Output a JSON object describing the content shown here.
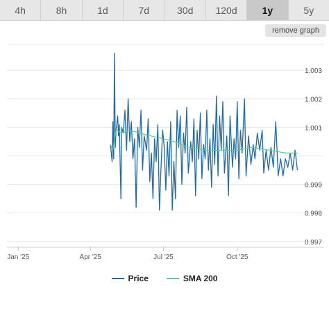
{
  "tabs": [
    {
      "label": "4h",
      "active": false
    },
    {
      "label": "8h",
      "active": false
    },
    {
      "label": "1d",
      "active": false
    },
    {
      "label": "7d",
      "active": false
    },
    {
      "label": "30d",
      "active": false
    },
    {
      "label": "120d",
      "active": false
    },
    {
      "label": "1y",
      "active": true
    },
    {
      "label": "5y",
      "active": false
    }
  ],
  "remove_graph_label": "remove graph",
  "colors": {
    "price": "#1f6aa5",
    "sma": "#4fd18f",
    "grid": "#e6e6e6",
    "tab_active": "#c9c9c9"
  },
  "chart_data": {
    "type": "line",
    "title": "",
    "xlabel": "",
    "ylabel": "",
    "x_range": [
      "2024-12-18",
      "2025-12-18"
    ],
    "ylim": [
      0.9968,
      1.0041
    ],
    "yticks": [
      0.997,
      0.998,
      0.999,
      1.0,
      1.001,
      1.002,
      1.003
    ],
    "ytick_labels": [
      "0.997",
      "0.998",
      "0.999",
      "",
      "1.001",
      "1.002",
      "1.003"
    ],
    "xticks": [
      "2025-01-01",
      "2025-04-01",
      "2025-07-01",
      "2025-10-01"
    ],
    "xtick_labels": [
      "Jan '25",
      "Apr '25",
      "Jul '25",
      "Oct '25"
    ],
    "grid": true,
    "legend": "bottom",
    "series": [
      {
        "name": "Price",
        "color": "#1f6aa5",
        "points": [
          [
            "2025-04-26",
            1.0004
          ],
          [
            "2025-04-27",
            1.0001
          ],
          [
            "2025-04-28",
            0.9998
          ],
          [
            "2025-04-29",
            1.0012
          ],
          [
            "2025-04-30",
            0.9999
          ],
          [
            "2025-05-01",
            1.0036
          ],
          [
            "2025-05-02",
            1.0003
          ],
          [
            "2025-05-03",
            1.0009
          ],
          [
            "2025-05-05",
            1.0014
          ],
          [
            "2025-05-06",
            1.0007
          ],
          [
            "2025-05-07",
            1.0011
          ],
          [
            "2025-05-09",
            0.9985
          ],
          [
            "2025-05-10",
            1.001
          ],
          [
            "2025-05-12",
            1.0008
          ],
          [
            "2025-05-14",
            1.0016
          ],
          [
            "2025-05-16",
            1.0002
          ],
          [
            "2025-05-18",
            1.002
          ],
          [
            "2025-05-20",
            1.0005
          ],
          [
            "2025-05-22",
            1.0012
          ],
          [
            "2025-05-24",
            0.9999
          ],
          [
            "2025-05-26",
            1.0006
          ],
          [
            "2025-05-28",
            0.9982
          ],
          [
            "2025-05-30",
            1.001
          ],
          [
            "2025-06-01",
            1.0003
          ],
          [
            "2025-06-03",
            1.0016
          ],
          [
            "2025-06-05",
            0.9995
          ],
          [
            "2025-06-07",
            1.0007
          ],
          [
            "2025-06-10",
            1.0002
          ],
          [
            "2025-06-12",
            1.0013
          ],
          [
            "2025-06-14",
            0.9991
          ],
          [
            "2025-06-16",
            1.0001
          ],
          [
            "2025-06-18",
            0.9985
          ],
          [
            "2025-06-20",
            1.0006
          ],
          [
            "2025-06-22",
            0.9998
          ],
          [
            "2025-06-24",
            1.0011
          ],
          [
            "2025-06-26",
            0.9981
          ],
          [
            "2025-06-28",
            0.9996
          ],
          [
            "2025-06-30",
            1.0009
          ],
          [
            "2025-07-02",
            1.0003
          ],
          [
            "2025-07-04",
            0.9988
          ],
          [
            "2025-07-06",
            1.0005
          ],
          [
            "2025-07-08",
            0.9993
          ],
          [
            "2025-07-10",
            1.0012
          ],
          [
            "2025-07-12",
            0.9981
          ],
          [
            "2025-07-14",
            0.9998
          ],
          [
            "2025-07-16",
            0.9985
          ],
          [
            "2025-07-18",
            1.0016
          ],
          [
            "2025-07-20",
            1.0003
          ],
          [
            "2025-07-22",
            1.0014
          ],
          [
            "2025-07-24",
            0.999
          ],
          [
            "2025-07-26",
            1.0008
          ],
          [
            "2025-07-28",
            1.0001
          ],
          [
            "2025-07-30",
            1.0017
          ],
          [
            "2025-08-01",
            0.9994
          ],
          [
            "2025-08-04",
            1.0005
          ],
          [
            "2025-08-06",
            0.9998
          ],
          [
            "2025-08-08",
            1.0013
          ],
          [
            "2025-08-10",
            0.9986
          ],
          [
            "2025-08-12",
            1.0009
          ],
          [
            "2025-08-14",
            0.9999
          ],
          [
            "2025-08-16",
            1.0015
          ],
          [
            "2025-08-18",
            0.9992
          ],
          [
            "2025-08-20",
            1.0004
          ],
          [
            "2025-08-22",
            0.9999
          ],
          [
            "2025-08-24",
            1.0016
          ],
          [
            "2025-08-26",
            0.9995
          ],
          [
            "2025-08-28",
            1.0006
          ],
          [
            "2025-08-30",
            0.9989
          ],
          [
            "2025-09-01",
            1.0011
          ],
          [
            "2025-09-03",
            0.9997
          ],
          [
            "2025-09-05",
            1.0021
          ],
          [
            "2025-09-07",
            0.9993
          ],
          [
            "2025-09-09",
            1.0014
          ],
          [
            "2025-09-11",
            1.0002
          ],
          [
            "2025-09-13",
            1.0019
          ],
          [
            "2025-09-15",
            0.9994
          ],
          [
            "2025-09-18",
            1.0007
          ],
          [
            "2025-09-20",
            0.9986
          ],
          [
            "2025-09-22",
            1.0014
          ],
          [
            "2025-09-25",
            0.9996
          ],
          [
            "2025-09-27",
            1.0006
          ],
          [
            "2025-09-29",
            0.9999
          ],
          [
            "2025-10-01",
            1.0019
          ],
          [
            "2025-10-03",
            0.9992
          ],
          [
            "2025-10-05",
            1.0009
          ],
          [
            "2025-10-07",
            1.0001
          ],
          [
            "2025-10-10",
            1.002
          ],
          [
            "2025-10-12",
            0.9993
          ],
          [
            "2025-10-15",
            1.0007
          ],
          [
            "2025-10-18",
            0.9997
          ],
          [
            "2025-10-21",
            1.0004
          ],
          [
            "2025-10-23",
            0.9999
          ],
          [
            "2025-10-26",
            1.0008
          ],
          [
            "2025-10-29",
            1.0002
          ],
          [
            "2025-11-01",
            1.0009
          ],
          [
            "2025-11-03",
            0.9994
          ],
          [
            "2025-11-06",
            1.0002
          ],
          [
            "2025-11-09",
            0.9995
          ],
          [
            "2025-11-12",
            1.0003
          ],
          [
            "2025-11-15",
            0.9996
          ],
          [
            "2025-11-18",
            1.0012
          ],
          [
            "2025-11-21",
            0.9993
          ],
          [
            "2025-11-24",
            0.9999
          ],
          [
            "2025-11-27",
            0.9993
          ],
          [
            "2025-11-30",
            0.9999
          ],
          [
            "2025-12-03",
            0.9996
          ],
          [
            "2025-12-06",
            1.0001
          ],
          [
            "2025-12-09",
            0.9995
          ],
          [
            "2025-12-12",
            1.0002
          ],
          [
            "2025-12-15",
            0.9995
          ]
        ]
      },
      {
        "name": "SMA 200",
        "color": "#4fd18f",
        "points": [
          [
            "2025-04-26",
            1.0004
          ],
          [
            "2025-04-29",
            1.0002
          ],
          [
            "2025-05-03",
            1.0009
          ],
          [
            "2025-05-10",
            1.0008
          ],
          [
            "2025-05-20",
            1.0009
          ],
          [
            "2025-06-01",
            1.0008
          ],
          [
            "2025-06-15",
            1.0007
          ],
          [
            "2025-07-01",
            1.0006
          ],
          [
            "2025-07-15",
            1.0005
          ],
          [
            "2025-08-01",
            1.0003
          ],
          [
            "2025-08-20",
            1.0002
          ],
          [
            "2025-09-10",
            1.0002
          ],
          [
            "2025-10-01",
            1.0002
          ],
          [
            "2025-10-20",
            1.0003
          ],
          [
            "2025-11-10",
            1.0002
          ],
          [
            "2025-12-01",
            1.0001
          ],
          [
            "2025-12-15",
            1.0001
          ]
        ]
      }
    ]
  }
}
